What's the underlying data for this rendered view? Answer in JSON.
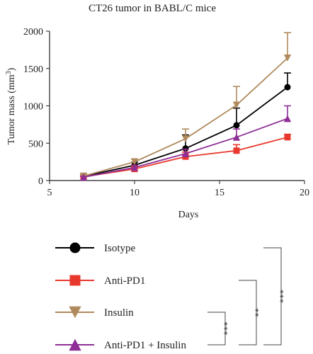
{
  "chart_data": {
    "type": "line",
    "title": "CT26 tumor in BABL/C mice",
    "xlabel": "Days",
    "ylabel_main": "Tumor mass (mm",
    "ylabel_sup": "3",
    "ylabel_close": ")",
    "xlim": [
      5,
      20
    ],
    "ylim": [
      0,
      2000
    ],
    "x_ticks": [
      5,
      10,
      15,
      20
    ],
    "y_ticks": [
      0,
      500,
      1000,
      1500,
      2000
    ],
    "grid": false,
    "legend_placement": "bottom",
    "x": [
      7,
      10,
      13,
      16,
      19
    ],
    "series": [
      {
        "name": "Isotype",
        "color": "#000000",
        "marker": "circle",
        "values": [
          55,
          205,
          430,
          740,
          1250
        ],
        "error": [
          15,
          40,
          180,
          230,
          190
        ]
      },
      {
        "name": "Anti-PD1",
        "color": "#e8372c",
        "marker": "square",
        "values": [
          50,
          155,
          320,
          400,
          580
        ],
        "error": [
          10,
          25,
          60,
          80,
          40
        ]
      },
      {
        "name": "Insulin",
        "color": "#b08a5c",
        "marker": "triangle-down",
        "values": [
          60,
          250,
          560,
          1010,
          1640
        ],
        "error": [
          15,
          40,
          130,
          250,
          340
        ]
      },
      {
        "name": "Anti-PD1 + Insulin",
        "color": "#8e2e96",
        "marker": "triangle-up",
        "values": [
          45,
          175,
          360,
          580,
          830
        ],
        "error": [
          10,
          30,
          60,
          110,
          170
        ]
      }
    ],
    "significance": [
      {
        "label": "***",
        "from_series": 0,
        "to_series": 3
      },
      {
        "label": "**",
        "from_series": 1,
        "to_series": 3
      },
      {
        "label": "***",
        "from_series": 2,
        "to_series": 3
      }
    ]
  }
}
